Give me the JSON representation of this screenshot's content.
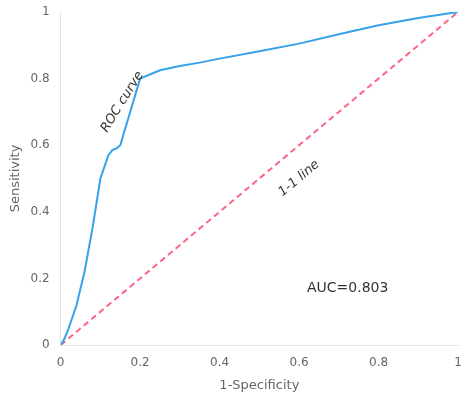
{
  "chart_data": {
    "type": "line",
    "x_label": "1-Specificity",
    "y_label": "Sensitivity",
    "series": [
      {
        "name": "ROC curve",
        "line_style": "solid",
        "x": [
          0.0,
          0.01,
          0.02,
          0.04,
          0.06,
          0.08,
          0.1,
          0.12,
          0.13,
          0.14,
          0.15,
          0.17,
          0.2,
          0.25,
          0.3,
          0.35,
          0.4,
          0.5,
          0.6,
          0.7,
          0.8,
          0.9,
          1.0
        ],
        "values": [
          0.0,
          0.02,
          0.05,
          0.12,
          0.22,
          0.35,
          0.5,
          0.57,
          0.585,
          0.59,
          0.6,
          0.68,
          0.8,
          0.825,
          0.838,
          0.848,
          0.86,
          0.882,
          0.905,
          0.933,
          0.96,
          0.982,
          1.0
        ]
      },
      {
        "name": "1-1 line",
        "line_style": "dashed",
        "x": [
          0.0,
          1.0
        ],
        "values": [
          0.0,
          1.0
        ]
      }
    ],
    "annotations": [
      "AUC=0.803"
    ],
    "xlim": [
      0,
      1
    ],
    "ylim": [
      0,
      1
    ],
    "xticks": [
      0,
      0.2,
      0.4,
      0.6,
      0.8,
      1.0
    ],
    "yticks": [
      0,
      0.2,
      0.4,
      0.6,
      0.8,
      1.0
    ],
    "grid": false
  }
}
